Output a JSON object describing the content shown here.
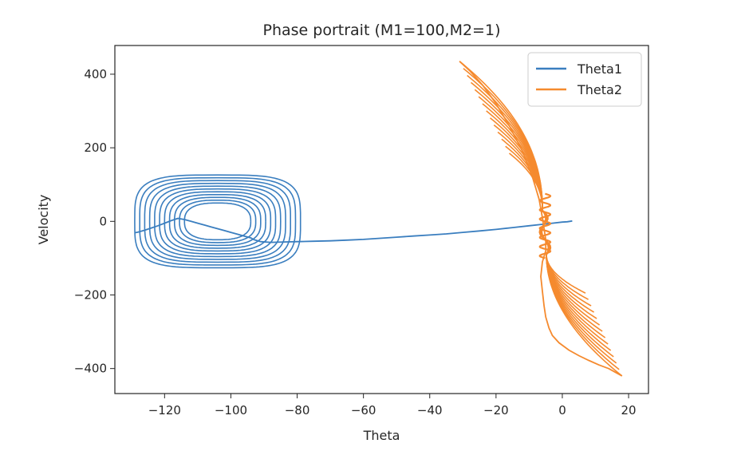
{
  "chart_data": {
    "type": "line",
    "title": "Phase portrait (M1=100,M2=1)",
    "xlabel": "Theta",
    "ylabel": "Velocity",
    "xlim": [
      -135,
      26
    ],
    "ylim": [
      -468,
      478
    ],
    "xticks": [
      -120,
      -100,
      -80,
      -60,
      -40,
      -20,
      0,
      20
    ],
    "xtick_labels": [
      "−120",
      "−100",
      "−80",
      "−60",
      "−40",
      "−20",
      "0",
      "20"
    ],
    "yticks": [
      -400,
      -200,
      0,
      200,
      400
    ],
    "ytick_labels": [
      "−400",
      "−200",
      "0",
      "200",
      "400"
    ],
    "grid": false,
    "legend": {
      "location": "top-right"
    },
    "series": [
      {
        "name": "Theta1",
        "color": "#3a7ebf",
        "x": [
          3.0,
          1.5,
          0,
          -3,
          -6,
          -10,
          -15,
          -20,
          -25,
          -30,
          -35,
          -40,
          -45,
          -50,
          -55,
          -60,
          -65,
          -70,
          -75,
          -80,
          -84,
          -88,
          -91,
          -93,
          -94,
          -96,
          -98,
          -100,
          -102,
          -104,
          -106,
          -108,
          -110,
          -112,
          -114,
          -116,
          -118,
          -120,
          -122,
          -124,
          -126,
          -128,
          -129
        ],
        "y": [
          1,
          -1,
          -2,
          -5,
          -8,
          -12,
          -17,
          -22,
          -26,
          -30,
          -34,
          -37,
          -40,
          -43,
          -46,
          -49,
          -51,
          -53,
          -54,
          -55,
          -56,
          -57,
          -55,
          -50,
          -45,
          -40,
          -35,
          -30,
          -25,
          -20,
          -15,
          -10,
          -5,
          0,
          5,
          8,
          2,
          -5,
          -12,
          -18,
          -24,
          -29,
          -31
        ]
      },
      {
        "name": "Theta2",
        "color": "#f58a2e",
        "x": [
          -31,
          -28,
          -24,
          -20,
          -16,
          -12,
          -9,
          -7,
          -6,
          -5.5,
          -5,
          -5,
          -6,
          -6.5,
          -6,
          -5.5,
          -5,
          -4,
          -3,
          -1,
          2,
          5,
          8,
          11,
          14,
          16,
          18
        ],
        "y": [
          435,
          410,
          370,
          320,
          260,
          190,
          120,
          60,
          10,
          -20,
          -50,
          -80,
          -110,
          -150,
          -190,
          -230,
          -260,
          -290,
          -310,
          -330,
          -350,
          -365,
          -378,
          -390,
          -400,
          -410,
          -420
        ]
      }
    ],
    "limit_cycle": {
      "series": "Theta1",
      "center_x": -104,
      "center_y": 0,
      "outer_half_width_x": 25,
      "outer_half_height_y": 130,
      "inner_half_width_x": 10,
      "inner_half_height_y": 50
    }
  }
}
